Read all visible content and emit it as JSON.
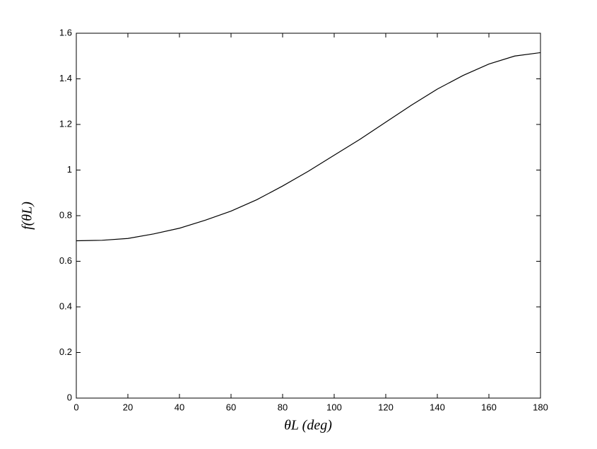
{
  "chart_data": {
    "type": "line",
    "x_label": "θL (deg)",
    "y_label": "f(θL)",
    "x": [
      0,
      10,
      20,
      30,
      40,
      50,
      60,
      70,
      80,
      90,
      100,
      110,
      120,
      130,
      140,
      150,
      160,
      170,
      180
    ],
    "series": [
      {
        "color": "#000000",
        "values": [
          0.69,
          0.692,
          0.7,
          0.72,
          0.745,
          0.78,
          0.82,
          0.87,
          0.93,
          0.995,
          1.065,
          1.135,
          1.21,
          1.285,
          1.355,
          1.415,
          1.465,
          1.5,
          1.515
        ]
      }
    ],
    "xlim": [
      0,
      180
    ],
    "xticks": [
      0,
      20,
      40,
      60,
      80,
      100,
      120,
      140,
      160,
      180
    ],
    "ylim": [
      0,
      1.6
    ],
    "yticks": [
      0,
      0.2,
      0.4,
      0.6,
      0.8,
      1,
      1.2,
      1.4,
      1.6
    ],
    "grid": false
  }
}
